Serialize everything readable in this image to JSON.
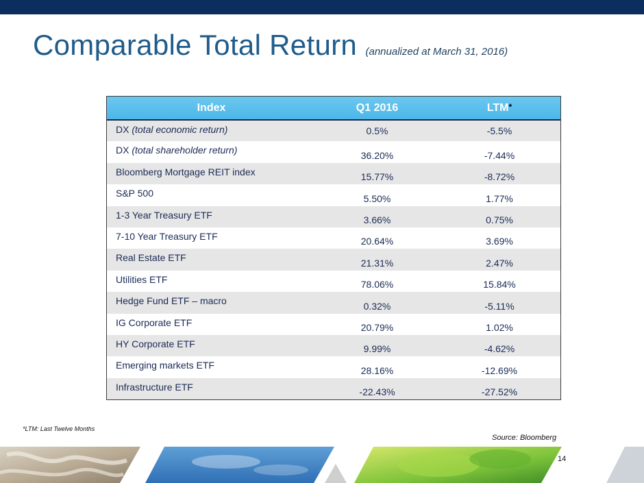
{
  "header": {
    "title": "Comparable Total Return",
    "subtitle": "(annualized at March 31, 2016)"
  },
  "table": {
    "columns": [
      "Index",
      "Q1 2016",
      "LTM",
      "*"
    ],
    "rows": [
      {
        "name": "DX",
        "note": "(total economic return)",
        "q1": "0.5%",
        "ltm": "-5.5%"
      },
      {
        "name": "DX",
        "note": "(total shareholder return)",
        "q1": "36.20%",
        "ltm": "-7.44%"
      },
      {
        "name": "Bloomberg Mortgage REIT index",
        "q1": "15.77%",
        "ltm": "-8.72%"
      },
      {
        "name": "S&P 500",
        "q1": "5.50%",
        "ltm": "1.77%"
      },
      {
        "name": "1-3 Year Treasury ETF",
        "q1": "3.66%",
        "ltm": "0.75%"
      },
      {
        "name": "7-10 Year Treasury ETF",
        "q1": "20.64%",
        "ltm": "3.69%"
      },
      {
        "name": "Real Estate ETF",
        "q1": "21.31%",
        "ltm": "2.47%"
      },
      {
        "name": "Utilities ETF",
        "q1": "78.06%",
        "ltm": "15.84%"
      },
      {
        "name": "Hedge Fund ETF – macro",
        "q1": "0.32%",
        "ltm": "-5.11%"
      },
      {
        "name": "IG Corporate ETF",
        "q1": "20.79%",
        "ltm": "1.02%"
      },
      {
        "name": "HY Corporate ETF",
        "q1": "9.99%",
        "ltm": "-4.62%"
      },
      {
        "name": "Emerging markets ETF",
        "q1": "28.16%",
        "ltm": "-12.69%"
      },
      {
        "name": "Infrastructure ETF",
        "q1": "-22.43%",
        "ltm": "-27.52%"
      }
    ]
  },
  "footnote": "*LTM: Last Twelve Months",
  "source": "Source: Bloomberg",
  "page_number": "14",
  "colors": {
    "top_bar": "#0b2e5e",
    "title": "#1f5c8b",
    "table_header": "#4bb6e8",
    "row_shade": "#e6e6e6"
  }
}
